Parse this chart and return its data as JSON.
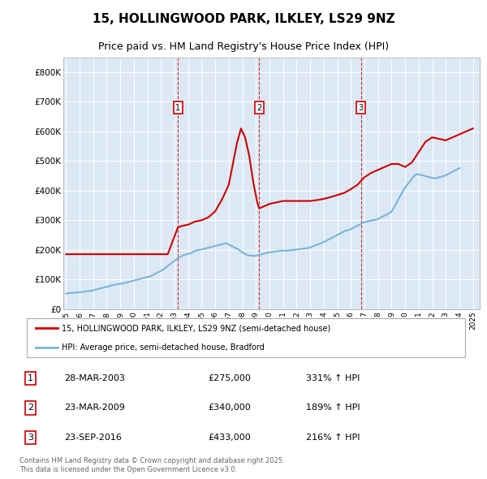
{
  "title1": "15, HOLLINGWOOD PARK, ILKLEY, LS29 9NZ",
  "title2": "Price paid vs. HM Land Registry's House Price Index (HPI)",
  "plot_bg": "#dce9f5",
  "legend_label_red": "15, HOLLINGWOOD PARK, ILKLEY, LS29 9NZ (semi-detached house)",
  "legend_label_blue": "HPI: Average price, semi-detached house, Bradford",
  "footer": "Contains HM Land Registry data © Crown copyright and database right 2025.\nThis data is licensed under the Open Government Licence v3.0.",
  "purchases": [
    {
      "num": 1,
      "date": "28-MAR-2003",
      "price": 275000,
      "x": 2003.24,
      "pct": "331%",
      "dir": "↑"
    },
    {
      "num": 2,
      "date": "23-MAR-2009",
      "price": 340000,
      "x": 2009.24,
      "pct": "189%",
      "dir": "↑"
    },
    {
      "num": 3,
      "date": "23-SEP-2016",
      "price": 433000,
      "x": 2016.75,
      "pct": "216%",
      "dir": "↑"
    }
  ],
  "hpi_values": [
    52000,
    52500,
    53000,
    53500,
    54000,
    54500,
    55000,
    55200,
    55400,
    55600,
    55800,
    56000,
    56500,
    57000,
    57500,
    58000,
    58500,
    59000,
    59500,
    60000,
    60500,
    61000,
    61500,
    62000,
    63000,
    64000,
    65000,
    66000,
    67000,
    68000,
    69000,
    70000,
    71000,
    72000,
    73000,
    74000,
    75000,
    76000,
    77000,
    78000,
    79000,
    80000,
    81000,
    82000,
    83000,
    83500,
    84000,
    84500,
    85000,
    85500,
    86000,
    87000,
    88000,
    89000,
    90000,
    91000,
    92000,
    93000,
    94000,
    95000,
    96000,
    97000,
    98000,
    99000,
    100000,
    101000,
    102000,
    103000,
    104000,
    105000,
    106000,
    107000,
    108000,
    109000,
    110000,
    111000,
    113000,
    115000,
    117000,
    119000,
    121000,
    123000,
    125000,
    127000,
    129000,
    131000,
    133000,
    136000,
    139000,
    142000,
    145000,
    148000,
    151000,
    154000,
    157000,
    160000,
    163000,
    166000,
    169000,
    172000,
    174000,
    176000,
    178000,
    180000,
    182000,
    183000,
    184000,
    185000,
    186000,
    187000,
    188000,
    190000,
    192000,
    194000,
    196000,
    197000,
    198000,
    199000,
    200000,
    200500,
    201000,
    202000,
    203000,
    204000,
    205000,
    206000,
    207000,
    208000,
    209000,
    210000,
    211000,
    212000,
    213000,
    214000,
    215000,
    216000,
    217000,
    218000,
    219000,
    220000,
    221000,
    222000,
    221000,
    220000,
    218000,
    216000,
    214000,
    212000,
    210000,
    208000,
    206000,
    204000,
    202000,
    200000,
    197000,
    194000,
    191000,
    189000,
    187000,
    185000,
    183000,
    182000,
    181000,
    180500,
    180000,
    179500,
    179000,
    179500,
    180000,
    181000,
    182000,
    183000,
    184000,
    185000,
    186000,
    187000,
    188000,
    189000,
    190000,
    191000,
    191500,
    192000,
    192500,
    193000,
    193500,
    194000,
    194500,
    195000,
    195500,
    196000,
    196500,
    197000,
    197000,
    197000,
    197000,
    197000,
    197000,
    197500,
    198000,
    198500,
    199000,
    199500,
    200000,
    200500,
    201000,
    201500,
    202000,
    202500,
    203000,
    203500,
    204000,
    204500,
    205000,
    205500,
    206000,
    206500,
    208000,
    209500,
    211000,
    212500,
    214000,
    215500,
    217000,
    218500,
    220000,
    221500,
    223000,
    224500,
    226000,
    228000,
    230000,
    232000,
    234000,
    236000,
    238000,
    240000,
    242000,
    244000,
    246000,
    248000,
    250000,
    252000,
    254000,
    256000,
    258000,
    260000,
    262000,
    264000,
    265000,
    266000,
    267000,
    268000,
    270000,
    272000,
    274000,
    276000,
    278000,
    280000,
    282000,
    284000,
    286000,
    288000,
    290000,
    292000,
    293000,
    294000,
    295000,
    296000,
    297000,
    298000,
    299000,
    300000,
    300500,
    301000,
    301500,
    302000,
    304000,
    306000,
    308000,
    310000,
    312000,
    314000,
    316000,
    318000,
    320000,
    322000,
    324000,
    326000,
    328000,
    335000,
    342000,
    349000,
    356000,
    363000,
    370000,
    377000,
    384000,
    391000,
    398000,
    405000,
    410000,
    415000,
    420000,
    425000,
    430000,
    435000,
    440000,
    445000,
    450000,
    452000,
    454000,
    456000,
    455000,
    454000,
    453000,
    452000,
    451000,
    450000,
    449000,
    448000,
    447000,
    446000,
    445000,
    444000,
    443000,
    442000,
    441000,
    442000,
    443000,
    444000,
    445000,
    446000,
    447000,
    448000,
    449000,
    450000,
    452000,
    454000,
    456000,
    458000,
    460000,
    462000,
    464000,
    466000,
    468000,
    470000,
    472000,
    474000,
    476000
  ],
  "price_line_dates": [
    1995.0,
    1995.5,
    1996.0,
    1996.5,
    1997.0,
    1997.5,
    1998.0,
    1998.5,
    1999.0,
    1999.5,
    2000.0,
    2000.5,
    2001.0,
    2001.5,
    2002.0,
    2002.5,
    2003.24,
    2003.5,
    2004.0,
    2004.5,
    2005.0,
    2005.5,
    2006.0,
    2006.5,
    2007.0,
    2007.3,
    2007.6,
    2007.9,
    2008.2,
    2008.5,
    2008.8,
    2009.1,
    2009.24,
    2009.5,
    2010.0,
    2010.5,
    2011.0,
    2011.5,
    2012.0,
    2012.5,
    2013.0,
    2013.5,
    2014.0,
    2014.5,
    2015.0,
    2015.5,
    2016.0,
    2016.5,
    2016.75,
    2017.0,
    2017.5,
    2018.0,
    2018.5,
    2019.0,
    2019.5,
    2020.0,
    2020.5,
    2021.0,
    2021.5,
    2022.0,
    2022.5,
    2023.0,
    2023.5,
    2024.0,
    2024.5,
    2025.0
  ],
  "price_line_values": [
    185000,
    185000,
    185000,
    185000,
    185000,
    185000,
    185000,
    185000,
    185000,
    185000,
    185000,
    185000,
    185000,
    185000,
    185000,
    185000,
    275000,
    280000,
    285000,
    295000,
    300000,
    310000,
    330000,
    370000,
    420000,
    490000,
    560000,
    610000,
    580000,
    520000,
    430000,
    360000,
    340000,
    345000,
    355000,
    360000,
    365000,
    365000,
    365000,
    365000,
    365000,
    368000,
    372000,
    378000,
    385000,
    392000,
    405000,
    420000,
    433000,
    445000,
    460000,
    470000,
    480000,
    490000,
    490000,
    480000,
    495000,
    530000,
    565000,
    580000,
    575000,
    570000,
    580000,
    590000,
    600000,
    610000
  ],
  "ylim": [
    0,
    850000
  ],
  "xlim": [
    1994.8,
    2025.5
  ],
  "yticks": [
    0,
    100000,
    200000,
    300000,
    400000,
    500000,
    600000,
    700000,
    800000
  ],
  "ytick_labels": [
    "£0",
    "£100K",
    "£200K",
    "£300K",
    "£400K",
    "£500K",
    "£600K",
    "£700K",
    "£800K"
  ],
  "xticks": [
    1995,
    1996,
    1997,
    1998,
    1999,
    2000,
    2001,
    2002,
    2003,
    2004,
    2005,
    2006,
    2007,
    2008,
    2009,
    2010,
    2011,
    2012,
    2013,
    2014,
    2015,
    2016,
    2017,
    2018,
    2019,
    2020,
    2021,
    2022,
    2023,
    2024,
    2025
  ]
}
